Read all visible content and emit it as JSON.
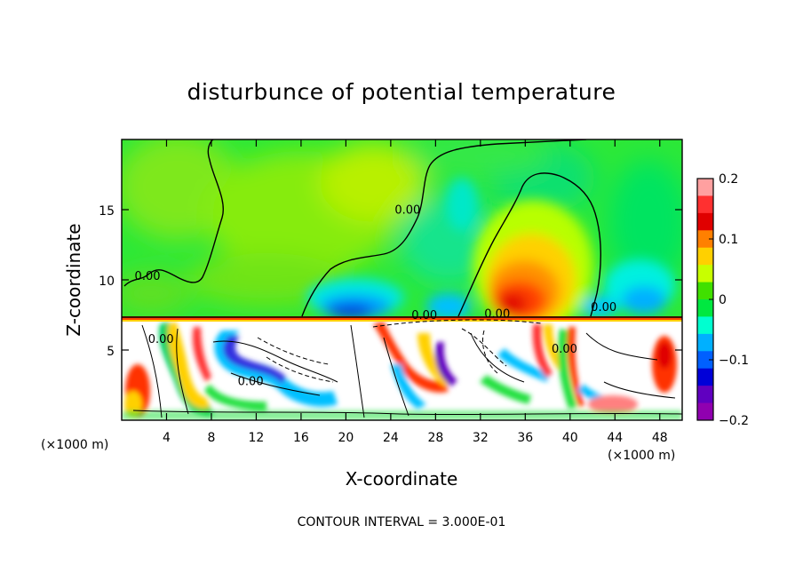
{
  "chart_data": {
    "type": "heatmap",
    "title": "disturbunce of potential temperature",
    "xlabel": "X-coordinate",
    "ylabel": "Z-coordinate",
    "x_unit_left": "(×1000 m)",
    "x_unit_right": "(×1000 m)",
    "xlim": [
      0,
      50
    ],
    "ylim": [
      0,
      20
    ],
    "x_ticks": [
      4,
      8,
      12,
      16,
      20,
      24,
      28,
      32,
      36,
      40,
      44,
      48
    ],
    "x_tick_labels": [
      "4",
      "8",
      "12",
      "16",
      "20",
      "24",
      "28",
      "32",
      "36",
      "40",
      "44",
      "48"
    ],
    "y_ticks": [
      5,
      10,
      15
    ],
    "y_tick_labels": [
      "5",
      "10",
      "15"
    ],
    "colorbar": {
      "range": [
        -0.2,
        0.2
      ],
      "ticks": [
        0.2,
        0.1,
        0,
        -0.1,
        -0.2
      ],
      "tick_labels": [
        "0.2",
        "0.1",
        "0",
        "−0.1",
        "−0.2"
      ],
      "colors": [
        "#ffa0a0",
        "#ff3030",
        "#e00000",
        "#ff8000",
        "#ffd000",
        "#c8ff00",
        "#40e000",
        "#00e840",
        "#00ffd0",
        "#00b0ff",
        "#0060ff",
        "#0000d8",
        "#6000c0",
        "#9000b0"
      ]
    },
    "contour_labels": [
      {
        "text": "0.00",
        "x": 2.3,
        "y": 10.0
      },
      {
        "text": "0.00",
        "x": 25.5,
        "y": 14.7
      },
      {
        "text": "0.00",
        "x": 3.5,
        "y": 5.5
      },
      {
        "text": "0.00",
        "x": 11.5,
        "y": 2.5
      },
      {
        "text": "0.00",
        "x": 27.0,
        "y": 7.2
      },
      {
        "text": "0.00",
        "x": 33.5,
        "y": 7.3
      },
      {
        "text": "0.00",
        "x": 43.0,
        "y": 7.8
      },
      {
        "text": "0.00",
        "x": 39.5,
        "y": 4.8
      }
    ],
    "contour_interval_text": "CONTOUR INTERVAL = 3.000E-01"
  }
}
